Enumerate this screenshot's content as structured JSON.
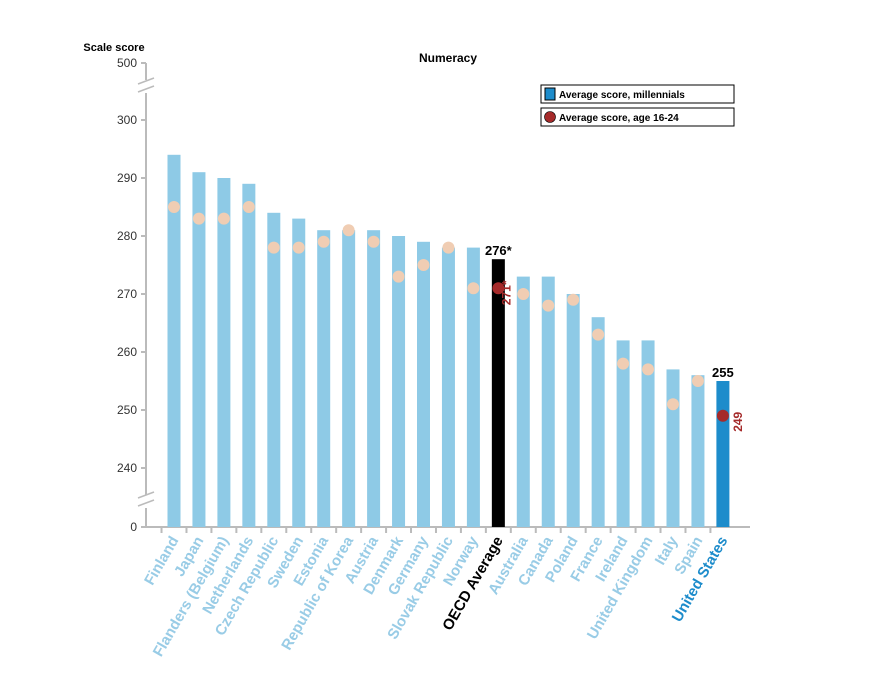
{
  "chart_data": {
    "type": "bar",
    "title": "Numeracy",
    "ylabel": "Scale score",
    "xlabel": "",
    "ylim": [
      240,
      300
    ],
    "y_ticks": [
      0,
      240,
      250,
      260,
      270,
      280,
      290,
      300,
      500
    ],
    "axis_break": "between 0 and 240, and between 300 and 500",
    "legend": {
      "placement": "top-right",
      "entries": [
        "Average score, millennials",
        "Average score, age 16-24"
      ]
    },
    "categories": [
      "Finland",
      "Japan",
      "Flanders (Belgium)",
      "Netherlands",
      "Czech Republic",
      "Sweden",
      "Estonia",
      "Republic of Korea",
      "Austria",
      "Denmark",
      "Germany",
      "Slovak Republic",
      "Norway",
      "OECD Average",
      "Australia",
      "Canada",
      "Poland",
      "France",
      "Ireland",
      "United Kingdom",
      "Italy",
      "Spain",
      "United States"
    ],
    "series": [
      {
        "name": "Average score, millennials",
        "values": [
          294,
          291,
          290,
          289,
          284,
          283,
          281,
          281,
          281,
          280,
          279,
          278,
          278,
          276,
          273,
          273,
          270,
          266,
          262,
          262,
          257,
          256,
          255
        ]
      },
      {
        "name": "Average score, age 16-24",
        "values": [
          285,
          283,
          283,
          285,
          278,
          278,
          279,
          281,
          279,
          273,
          275,
          278,
          271,
          271,
          270,
          268,
          269,
          263,
          258,
          257,
          251,
          255,
          249
        ]
      }
    ],
    "highlight_labels": {
      "oecd_bar": "276*",
      "oecd_dot": "271*",
      "us_bar": "255",
      "us_dot": "249"
    },
    "colors": {
      "bar": "#8ecae6",
      "oecd_bar": "#000000",
      "us_bar": "#1d8ccb",
      "dot": "#f0cdb3",
      "highlight_dot": "#a52a2a",
      "label": "#99cce6",
      "us_label": "#1d8ccb",
      "axis": "#bbbbbb"
    }
  }
}
